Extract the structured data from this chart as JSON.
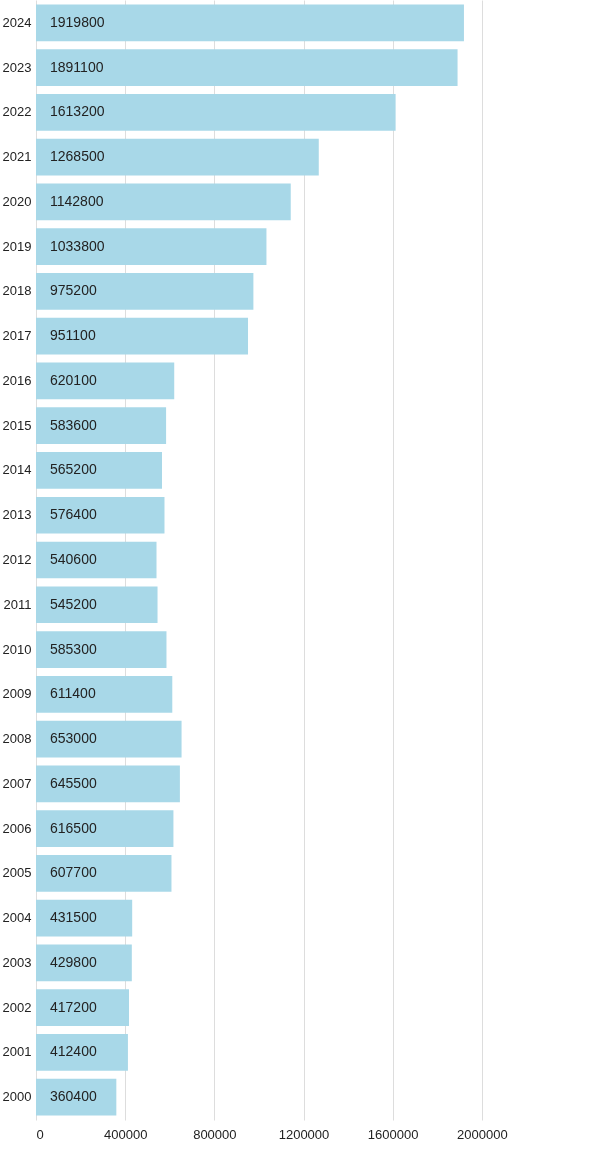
{
  "chart_data": {
    "type": "bar",
    "orientation": "horizontal",
    "categories": [
      "2024",
      "2023",
      "2022",
      "2021",
      "2020",
      "2019",
      "2018",
      "2017",
      "2016",
      "2015",
      "2014",
      "2013",
      "2012",
      "2011",
      "2010",
      "2009",
      "2008",
      "2007",
      "2006",
      "2005",
      "2004",
      "2003",
      "2002",
      "2001",
      "2000"
    ],
    "values": [
      1919800,
      1891100,
      1613200,
      1268500,
      1142800,
      1033800,
      975200,
      951100,
      620100,
      583600,
      565200,
      576400,
      540600,
      545200,
      585300,
      611400,
      653000,
      645500,
      616500,
      607700,
      431500,
      429800,
      417200,
      412400,
      360400
    ],
    "color": "#a8d8e8",
    "xlim": [
      0,
      2400000
    ],
    "xticks": [
      0,
      400000,
      800000,
      1200000,
      1600000,
      2000000
    ],
    "grid": "x",
    "data_labels": true
  }
}
